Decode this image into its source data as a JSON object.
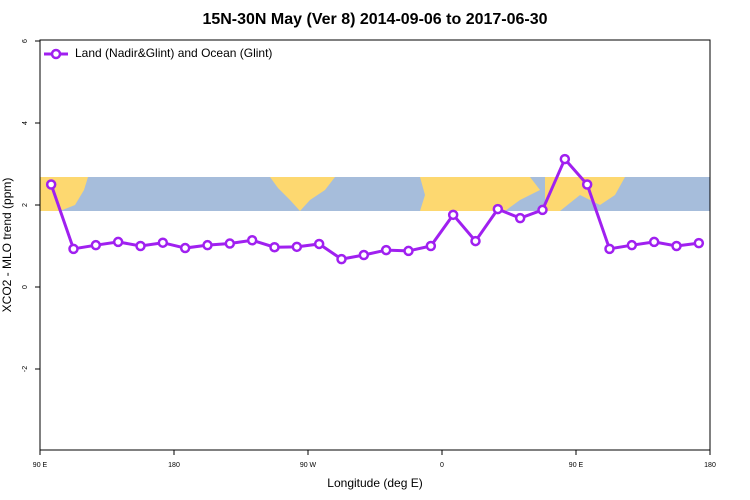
{
  "chart_data": {
    "type": "line",
    "title": "15N-30N May (Ver 8)   2014-09-06 to 2017-06-30",
    "xlabel": "Longitude (deg E)",
    "ylabel": "XCO2 - MLO trend (ppm)",
    "xlim": [
      90,
      540
    ],
    "xticks": [
      {
        "value": 90,
        "label": "90 E"
      },
      {
        "value": 180,
        "label": "180"
      },
      {
        "value": 270,
        "label": "90 W"
      },
      {
        "value": 360,
        "label": "0"
      },
      {
        "value": 450,
        "label": "90 E"
      },
      {
        "value": 540,
        "label": "180"
      }
    ],
    "ylim": [
      -4,
      6
    ],
    "yticks": [
      -2,
      0,
      2,
      4,
      6
    ],
    "legend": "top-left",
    "x": [
      97.5,
      112.5,
      127.5,
      142.5,
      157.5,
      172.5,
      187.5,
      202.5,
      217.5,
      232.5,
      247.5,
      262.5,
      277.5,
      292.5,
      307.5,
      322.5,
      337.5,
      352.5,
      367.5,
      382.5,
      397.5,
      412.5,
      427.5,
      442.5,
      457.5,
      472.5,
      487.5,
      502.5,
      517.5,
      532.5
    ],
    "series": [
      {
        "name": "Land (Nadir&Glint) and Ocean (Glint)",
        "color": "#a020f0",
        "values": [
          2.5,
          0.93,
          1.02,
          1.1,
          1.0,
          1.08,
          0.95,
          1.02,
          1.06,
          1.14,
          0.97,
          0.98,
          1.05,
          0.68,
          0.78,
          0.9,
          0.88,
          1.0,
          1.76,
          1.12,
          1.9,
          1.68,
          1.88,
          3.12,
          2.5,
          0.93,
          1.02,
          1.1,
          1.0,
          1.07
        ]
      }
    ]
  }
}
